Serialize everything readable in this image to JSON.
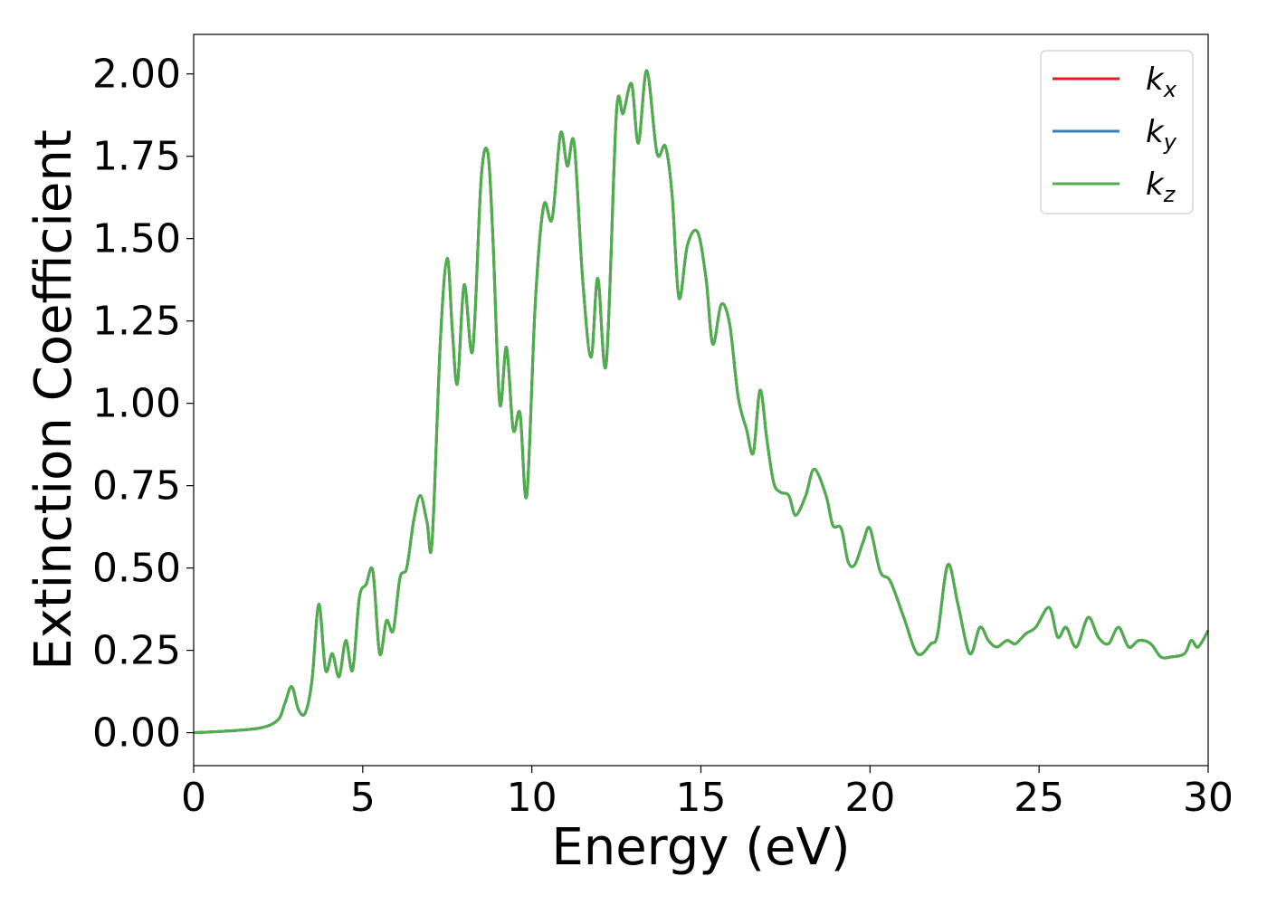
{
  "chart_data": {
    "type": "line",
    "xlabel": "Energy (eV)",
    "ylabel": "Extinction Coefficient",
    "xlim": [
      0,
      30
    ],
    "ylim": [
      -0.1,
      2.12
    ],
    "xticks": [
      "0",
      "5",
      "10",
      "15",
      "20",
      "25",
      "30"
    ],
    "yticks": [
      "0.00",
      "0.25",
      "0.50",
      "0.75",
      "1.00",
      "1.25",
      "1.50",
      "1.75",
      "2.00"
    ],
    "grid": false,
    "legend_position": "top-right",
    "x": [
      0,
      1.0,
      2.0,
      2.5,
      2.7,
      2.9,
      3.1,
      3.3,
      3.5,
      3.7,
      3.9,
      4.1,
      4.3,
      4.5,
      4.7,
      4.9,
      5.1,
      5.3,
      5.5,
      5.7,
      5.9,
      6.1,
      6.3,
      6.5,
      6.7,
      6.9,
      7.05,
      7.3,
      7.5,
      7.65,
      7.8,
      8.0,
      8.25,
      8.5,
      8.7,
      8.85,
      9.05,
      9.25,
      9.45,
      9.65,
      9.85,
      10.1,
      10.35,
      10.6,
      10.85,
      11.05,
      11.25,
      11.5,
      11.75,
      11.95,
      12.2,
      12.5,
      12.7,
      12.95,
      13.15,
      13.4,
      13.7,
      13.95,
      14.15,
      14.35,
      14.6,
      14.9,
      15.15,
      15.35,
      15.6,
      15.85,
      16.1,
      16.35,
      16.55,
      16.75,
      16.95,
      17.15,
      17.35,
      17.6,
      17.8,
      18.1,
      18.35,
      18.7,
      18.9,
      19.15,
      19.35,
      19.55,
      19.8,
      20.0,
      20.3,
      20.6,
      21.0,
      21.4,
      21.8,
      22.0,
      22.3,
      22.6,
      22.95,
      23.25,
      23.5,
      23.75,
      24.05,
      24.3,
      24.6,
      24.9,
      25.3,
      25.55,
      25.8,
      26.1,
      26.45,
      26.75,
      27.05,
      27.35,
      27.65,
      27.95,
      28.3,
      28.6,
      28.9,
      29.3,
      29.5,
      29.7,
      30.0
    ],
    "series": [
      {
        "name": "k",
        "subscript": "x",
        "color": "#e41a1c",
        "values": [
          0,
          0.005,
          0.015,
          0.04,
          0.09,
          0.14,
          0.07,
          0.06,
          0.16,
          0.39,
          0.19,
          0.24,
          0.17,
          0.28,
          0.19,
          0.41,
          0.45,
          0.49,
          0.24,
          0.34,
          0.31,
          0.47,
          0.5,
          0.64,
          0.72,
          0.64,
          0.58,
          1.2,
          1.44,
          1.22,
          1.06,
          1.36,
          1.16,
          1.68,
          1.76,
          1.5,
          1.0,
          1.17,
          0.92,
          0.97,
          0.72,
          1.3,
          1.6,
          1.56,
          1.82,
          1.72,
          1.79,
          1.38,
          1.14,
          1.38,
          1.12,
          1.88,
          1.88,
          1.97,
          1.79,
          2.01,
          1.76,
          1.78,
          1.63,
          1.32,
          1.48,
          1.52,
          1.38,
          1.18,
          1.3,
          1.24,
          1.02,
          0.92,
          0.85,
          1.04,
          0.89,
          0.76,
          0.73,
          0.72,
          0.66,
          0.72,
          0.8,
          0.72,
          0.63,
          0.62,
          0.52,
          0.51,
          0.58,
          0.62,
          0.49,
          0.46,
          0.35,
          0.24,
          0.27,
          0.3,
          0.51,
          0.39,
          0.24,
          0.32,
          0.28,
          0.26,
          0.28,
          0.27,
          0.3,
          0.32,
          0.38,
          0.29,
          0.32,
          0.26,
          0.35,
          0.29,
          0.27,
          0.32,
          0.26,
          0.28,
          0.27,
          0.23,
          0.23,
          0.24,
          0.28,
          0.26,
          0.31
        ]
      },
      {
        "name": "k",
        "subscript": "y",
        "color": "#377eb8",
        "values": [
          0,
          0.005,
          0.015,
          0.04,
          0.09,
          0.14,
          0.07,
          0.06,
          0.16,
          0.39,
          0.19,
          0.24,
          0.17,
          0.28,
          0.19,
          0.41,
          0.45,
          0.49,
          0.24,
          0.34,
          0.31,
          0.47,
          0.5,
          0.64,
          0.72,
          0.64,
          0.58,
          1.2,
          1.44,
          1.22,
          1.06,
          1.36,
          1.16,
          1.68,
          1.76,
          1.5,
          1.0,
          1.17,
          0.92,
          0.97,
          0.72,
          1.3,
          1.6,
          1.56,
          1.82,
          1.72,
          1.79,
          1.38,
          1.14,
          1.38,
          1.12,
          1.88,
          1.88,
          1.97,
          1.79,
          2.01,
          1.76,
          1.78,
          1.63,
          1.32,
          1.48,
          1.52,
          1.38,
          1.18,
          1.3,
          1.24,
          1.02,
          0.92,
          0.85,
          1.04,
          0.89,
          0.76,
          0.73,
          0.72,
          0.66,
          0.72,
          0.8,
          0.72,
          0.63,
          0.62,
          0.52,
          0.51,
          0.58,
          0.62,
          0.49,
          0.46,
          0.35,
          0.24,
          0.27,
          0.3,
          0.51,
          0.39,
          0.24,
          0.32,
          0.28,
          0.26,
          0.28,
          0.27,
          0.3,
          0.32,
          0.38,
          0.29,
          0.32,
          0.26,
          0.35,
          0.29,
          0.27,
          0.32,
          0.26,
          0.28,
          0.27,
          0.23,
          0.23,
          0.24,
          0.28,
          0.26,
          0.31
        ]
      },
      {
        "name": "k",
        "subscript": "z",
        "color": "#4daf4a",
        "values": [
          0,
          0.005,
          0.015,
          0.04,
          0.09,
          0.14,
          0.07,
          0.06,
          0.16,
          0.39,
          0.19,
          0.24,
          0.17,
          0.28,
          0.19,
          0.41,
          0.45,
          0.49,
          0.24,
          0.34,
          0.31,
          0.47,
          0.5,
          0.64,
          0.72,
          0.64,
          0.58,
          1.2,
          1.44,
          1.22,
          1.06,
          1.36,
          1.16,
          1.68,
          1.76,
          1.5,
          1.0,
          1.17,
          0.92,
          0.97,
          0.72,
          1.3,
          1.6,
          1.56,
          1.82,
          1.72,
          1.79,
          1.38,
          1.14,
          1.38,
          1.12,
          1.88,
          1.88,
          1.97,
          1.79,
          2.01,
          1.76,
          1.78,
          1.63,
          1.32,
          1.48,
          1.52,
          1.38,
          1.18,
          1.3,
          1.24,
          1.02,
          0.92,
          0.85,
          1.04,
          0.89,
          0.76,
          0.73,
          0.72,
          0.66,
          0.72,
          0.8,
          0.72,
          0.63,
          0.62,
          0.52,
          0.51,
          0.58,
          0.62,
          0.49,
          0.46,
          0.35,
          0.24,
          0.27,
          0.3,
          0.51,
          0.39,
          0.24,
          0.32,
          0.28,
          0.26,
          0.28,
          0.27,
          0.3,
          0.32,
          0.38,
          0.29,
          0.32,
          0.26,
          0.35,
          0.29,
          0.27,
          0.32,
          0.26,
          0.28,
          0.27,
          0.23,
          0.23,
          0.24,
          0.28,
          0.26,
          0.31
        ]
      }
    ]
  }
}
